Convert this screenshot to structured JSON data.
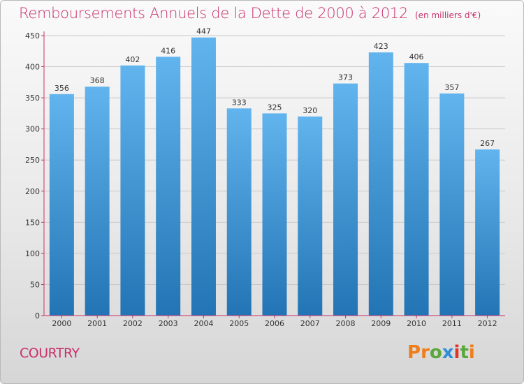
{
  "chart_data": {
    "type": "bar",
    "title": "Remboursements Annuels de la Dette de 2000 à 2012",
    "unit": "(en milliers d'€)",
    "categories": [
      "2000",
      "2001",
      "2002",
      "2003",
      "2004",
      "2005",
      "2006",
      "2007",
      "2008",
      "2009",
      "2010",
      "2011",
      "2012"
    ],
    "values": [
      356,
      368,
      402,
      416,
      447,
      333,
      325,
      320,
      373,
      423,
      406,
      357,
      267
    ],
    "yticks": [
      0,
      50,
      100,
      150,
      200,
      250,
      300,
      350,
      400,
      450
    ],
    "ylim": [
      0,
      450
    ],
    "grid": true,
    "xlabel": "",
    "ylabel": ""
  },
  "footer": {
    "place": "COURTRY",
    "logo_letters": [
      "P",
      "r",
      "o",
      "x",
      "i",
      "t",
      "i"
    ]
  },
  "colors": {
    "title": "#c8306a",
    "bar_top": "#62b4ee",
    "bar_bottom": "#2274b4",
    "grid": "#c9c9c9",
    "axis": "#c8306a",
    "logo": [
      "#ef7d1a",
      "#ef7d1a",
      "#5aa83c",
      "#2e8fd8",
      "#e3322b",
      "#5aa83c",
      "#ef7d1a"
    ]
  }
}
